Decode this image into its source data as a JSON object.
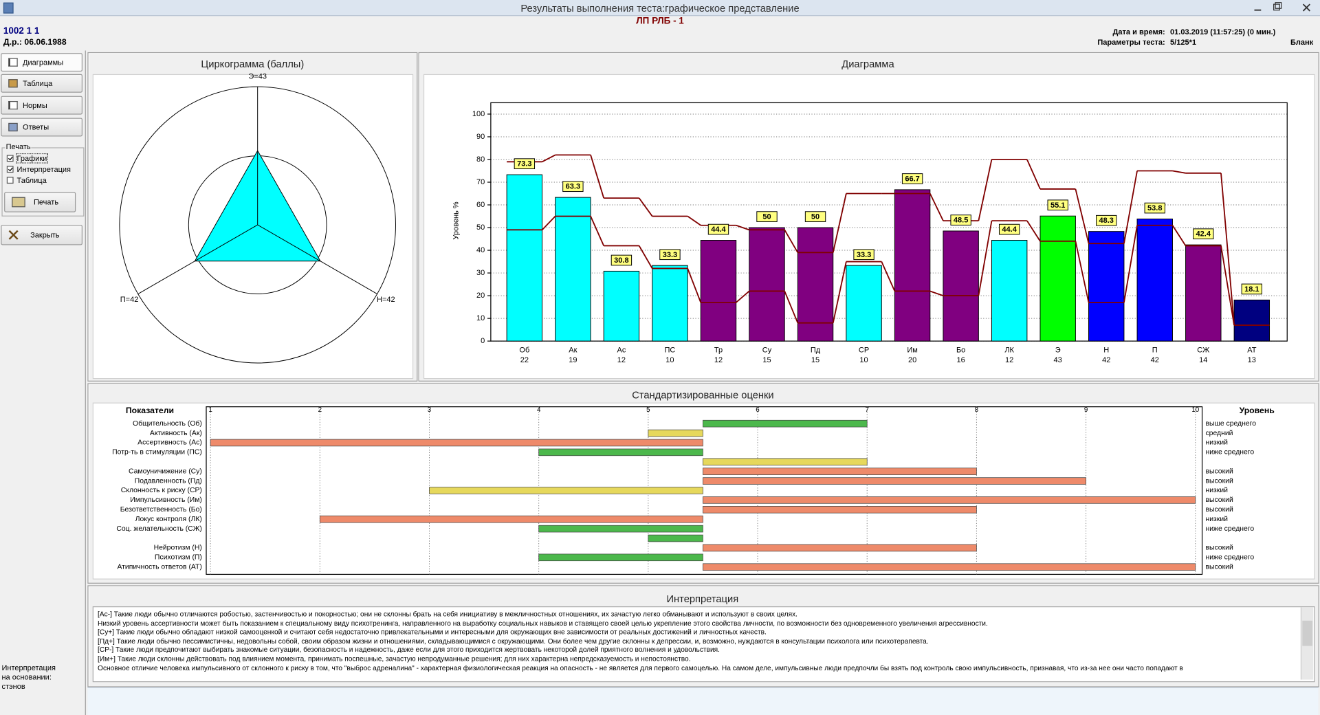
{
  "window": {
    "title": "Результаты выполнения теста:графическое представление"
  },
  "header": {
    "subtitle": "ЛП РЛБ - 1",
    "id": "1002 1 1",
    "birth": "Д.р.: 06.06.1988",
    "date_label": "Дата и время:",
    "date": "01.03.2019 (11:57:25) (0 мин.)",
    "params_label": "Параметры теста:",
    "params": "5/125*1",
    "form": "Бланк"
  },
  "sidebar": {
    "buttons": [
      "Диаграммы",
      "Таблица",
      "Нормы",
      "Ответы"
    ],
    "print_group": "Печать",
    "checkboxes": [
      {
        "label": "Графики",
        "checked": true
      },
      {
        "label": "Интерпретация",
        "checked": true
      },
      {
        "label": "Таблица",
        "checked": false
      }
    ],
    "print_button": "Печать",
    "close_button": "Закрыть",
    "basis_note": [
      "Интерпретация",
      "на основании:",
      "стэнов"
    ]
  },
  "chart_data": [
    {
      "type": "radar",
      "title": "Циркограмма (баллы)",
      "categories": [
        "Э=43",
        "Н=42",
        "П=42"
      ],
      "values": [
        43,
        42,
        42
      ],
      "color": "#00ffff",
      "rlim": [
        0,
        80
      ],
      "rticks": [
        40,
        80
      ]
    },
    {
      "type": "bar",
      "title": "Диаграмма",
      "ylabel": "Уровень %",
      "categories": [
        "Об",
        "Ак",
        "Ас",
        "ПС",
        "Тр",
        "Су",
        "Пд",
        "СР",
        "Им",
        "Бо",
        "ЛК",
        "Э",
        "Н",
        "П",
        "СЖ",
        "АТ"
      ],
      "raw_scores": [
        22,
        19,
        12,
        10,
        12,
        15,
        15,
        10,
        20,
        16,
        12,
        43,
        42,
        42,
        14,
        13
      ],
      "values": [
        73.3,
        63.3,
        30.8,
        33.3,
        44.4,
        50,
        50,
        33.3,
        66.7,
        48.5,
        44.4,
        55.1,
        48.3,
        53.8,
        42.4,
        18.1
      ],
      "colors": [
        "#00ffff",
        "#00ffff",
        "#00ffff",
        "#00ffff",
        "#800080",
        "#800080",
        "#800080",
        "#00ffff",
        "#800080",
        "#800080",
        "#00ffff",
        "#00ff00",
        "#0000ff",
        "#0000ff",
        "#800080",
        "#000080"
      ],
      "norm_lines": [
        {
          "color": "#800000",
          "values": [
            79,
            82,
            63,
            55,
            51,
            49,
            39,
            65,
            65,
            53,
            80,
            67,
            43,
            75,
            74,
            7
          ]
        },
        {
          "color": "#800000",
          "values": [
            49,
            55,
            42,
            32,
            17,
            22,
            8,
            35,
            22,
            20,
            53,
            44,
            17,
            51,
            42,
            7
          ]
        }
      ],
      "value_label_color": "#ffff80",
      "ylim": [
        0,
        105
      ],
      "yticks": [
        0,
        10,
        20,
        30,
        40,
        50,
        60,
        70,
        80,
        90,
        100
      ],
      "grid": true
    },
    {
      "type": "hbar",
      "title": "Стандартизированные оценки",
      "ylabel": "Показатели",
      "levels_title": "Уровень",
      "categories": [
        "Общительность (Об)",
        "Активность (Ак)",
        "Ассертивность (Ас)",
        "Потр-ть в стимуляции (ПС)",
        null,
        "Самоуничижение (Су)",
        "Подавленность (Пд)",
        "Склонность к риску (СР)",
        "Импульсивность (Им)",
        "Безответственность (Бо)",
        "Локус контроля (ЛК)",
        "Соц. желательность (СЖ)",
        null,
        "Нейротизм (Н)",
        "Психотизм (П)",
        "Атипичность ответов (АТ)"
      ],
      "values": [
        7,
        5,
        1,
        4,
        7,
        8,
        9,
        3,
        10,
        8,
        2,
        4,
        5,
        8,
        4,
        10
      ],
      "colors": [
        "#4cb84c",
        "#e6d85c",
        "#ee8a6a",
        "#4cb84c",
        "#e6d85c",
        "#ee8a6a",
        "#ee8a6a",
        "#e6d85c",
        "#ee8a6a",
        "#ee8a6a",
        "#ee8a6a",
        "#4cb84c",
        "#4cb84c",
        "#ee8a6a",
        "#4cb84c",
        "#ee8a6a"
      ],
      "levels": [
        "выше среднего",
        "средний",
        "низкий",
        "ниже среднего",
        null,
        "высокий",
        "высокий",
        "низкий",
        "высокий",
        "высокий",
        "низкий",
        "ниже среднего",
        null,
        "высокий",
        "ниже среднего",
        "высокий"
      ],
      "xlim": [
        1,
        10
      ],
      "xticks": [
        1,
        2,
        3,
        4,
        5,
        6,
        7,
        8,
        9,
        10
      ],
      "origin": 5.5,
      "grid": true
    }
  ],
  "interpretation": {
    "title": "Интерпретация",
    "lines": [
      "[Ас-]  Такие люди обычно отличаются робостью, застенчивостью и покорностью; они не склонны брать на себя инициативу в межличностных отношениях, их зачастую легко обманывают и используют в своих целях.",
      "Низкий уровень ассертивности может быть показанием к специальному виду психотренинга, направленного на выработку социальных навыков и ставящего своей целью укрепление этого свойства личности, по возможности без одновременного увеличения агрессивности.",
      "[Су+]  Такие люди обычно обладают низкой самооценкой и считают себя недостаточно привлекательными и интересными для окружающих вне зависимости от реальных достижений и личностных качеств.",
      "[Пд+]  Такие люди обычно пессимистичны, недовольны собой, своим образом жизни и отношениями, складывающимися с окружающими. Они более чем другие склонны к депрессии, и, возможно, нуждаются в консультации психолога или психотерапевта.",
      "[СР-]  Такие люди предпочитают выбирать знакомые ситуации, безопасность и надежность, даже если для этого приходится жертвовать некоторой долей приятного волнения и удовольствия.",
      "[Им+]  Такие люди склонны действовать под влиянием момента, принимать поспешные, зачастую непродуманные решения; для них характерна непредсказуемость и непостоянство.",
      "Основное отличие человека импульсивного от склонного к риску в том, что \"выброс адреналина\" - характерная физиологическая реакция на опасность - не является для первого самоцелью. На самом деле, импульсивные люди предпочли бы взять под контроль свою импульсивность, признавая, что из-за нее они часто попадают в"
    ]
  }
}
